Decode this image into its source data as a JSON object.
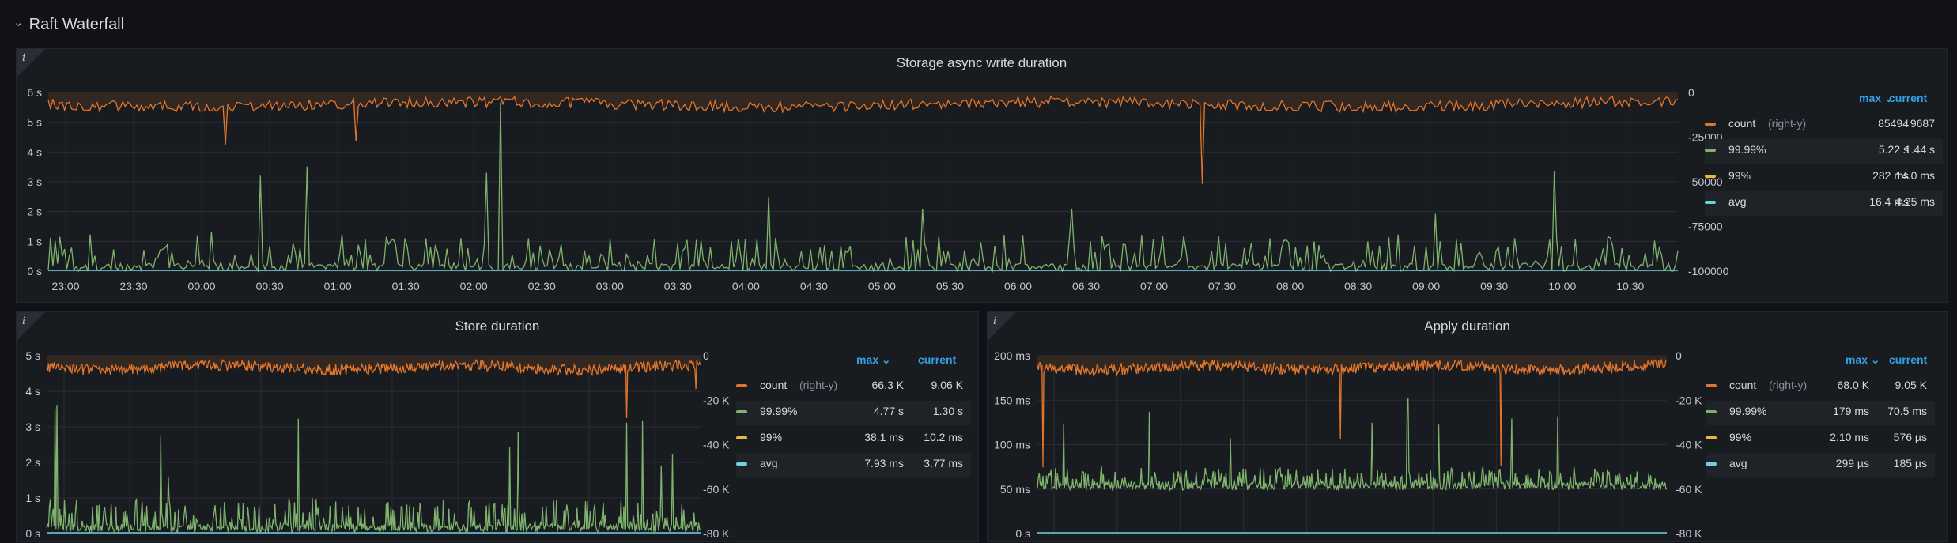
{
  "row": {
    "title": "Raft Waterfall",
    "chevron": "chevron-down-icon"
  },
  "colors": {
    "count": "#e0752d",
    "p9999": "#7eb26d",
    "p99": "#eab839",
    "avg": "#6ed0e0",
    "link": "#33a2e5"
  },
  "legend_header": {
    "max": "max",
    "current": "current"
  },
  "panels": [
    {
      "id": "storage",
      "title": "Storage async write duration",
      "info_icon": "i",
      "left_axis": [
        "6 s",
        "5 s",
        "4 s",
        "3 s",
        "2 s",
        "1 s",
        "0 s"
      ],
      "right_axis": [
        "0",
        "-25000",
        "-50000",
        "-75000",
        "-100000"
      ],
      "x_axis": [
        "23:00",
        "23:30",
        "00:00",
        "00:30",
        "01:00",
        "01:30",
        "02:00",
        "02:30",
        "03:00",
        "03:30",
        "04:00",
        "04:30",
        "05:00",
        "05:30",
        "06:00",
        "06:30",
        "07:00",
        "07:30",
        "08:00",
        "08:30",
        "09:00",
        "09:30",
        "10:00",
        "10:30"
      ],
      "legend": [
        {
          "label": "count",
          "sub": "(right-y)",
          "max": "85494",
          "current": "9687",
          "color": "#e0752d"
        },
        {
          "label": "99.99%",
          "sub": "",
          "max": "5.22 s",
          "current": "1.44 s",
          "color": "#7eb26d"
        },
        {
          "label": "99%",
          "sub": "",
          "max": "282 ms",
          "current": "14.0 ms",
          "color": "#eab839"
        },
        {
          "label": "avg",
          "sub": "",
          "max": "16.4 ms",
          "current": "4.25 ms",
          "color": "#6ed0e0"
        }
      ]
    },
    {
      "id": "store",
      "title": "Store duration",
      "info_icon": "i",
      "left_axis": [
        "5 s",
        "4 s",
        "3 s",
        "2 s",
        "1 s",
        "0 s"
      ],
      "right_axis": [
        "0",
        "-20 K",
        "-40 K",
        "-60 K",
        "-80 K"
      ],
      "x_axis": [],
      "legend": [
        {
          "label": "count",
          "sub": "(right-y)",
          "max": "66.3 K",
          "current": "9.06 K",
          "color": "#e0752d"
        },
        {
          "label": "99.99%",
          "sub": "",
          "max": "4.77 s",
          "current": "1.30 s",
          "color": "#7eb26d"
        },
        {
          "label": "99%",
          "sub": "",
          "max": "38.1 ms",
          "current": "10.2 ms",
          "color": "#eab839"
        },
        {
          "label": "avg",
          "sub": "",
          "max": "7.93 ms",
          "current": "3.77 ms",
          "color": "#6ed0e0"
        }
      ]
    },
    {
      "id": "apply",
      "title": "Apply duration",
      "info_icon": "i",
      "left_axis": [
        "200 ms",
        "150 ms",
        "100 ms",
        "50 ms",
        "0 s"
      ],
      "right_axis": [
        "0",
        "-20 K",
        "-40 K",
        "-60 K",
        "-80 K"
      ],
      "x_axis": [],
      "legend": [
        {
          "label": "count",
          "sub": "(right-y)",
          "max": "68.0 K",
          "current": "9.05 K",
          "color": "#e0752d"
        },
        {
          "label": "99.99%",
          "sub": "",
          "max": "179 ms",
          "current": "70.5 ms",
          "color": "#7eb26d"
        },
        {
          "label": "99%",
          "sub": "",
          "max": "2.10 ms",
          "current": "576 µs",
          "color": "#eab839"
        },
        {
          "label": "avg",
          "sub": "",
          "max": "299 µs",
          "current": "185 µs",
          "color": "#6ed0e0"
        }
      ]
    }
  ]
}
